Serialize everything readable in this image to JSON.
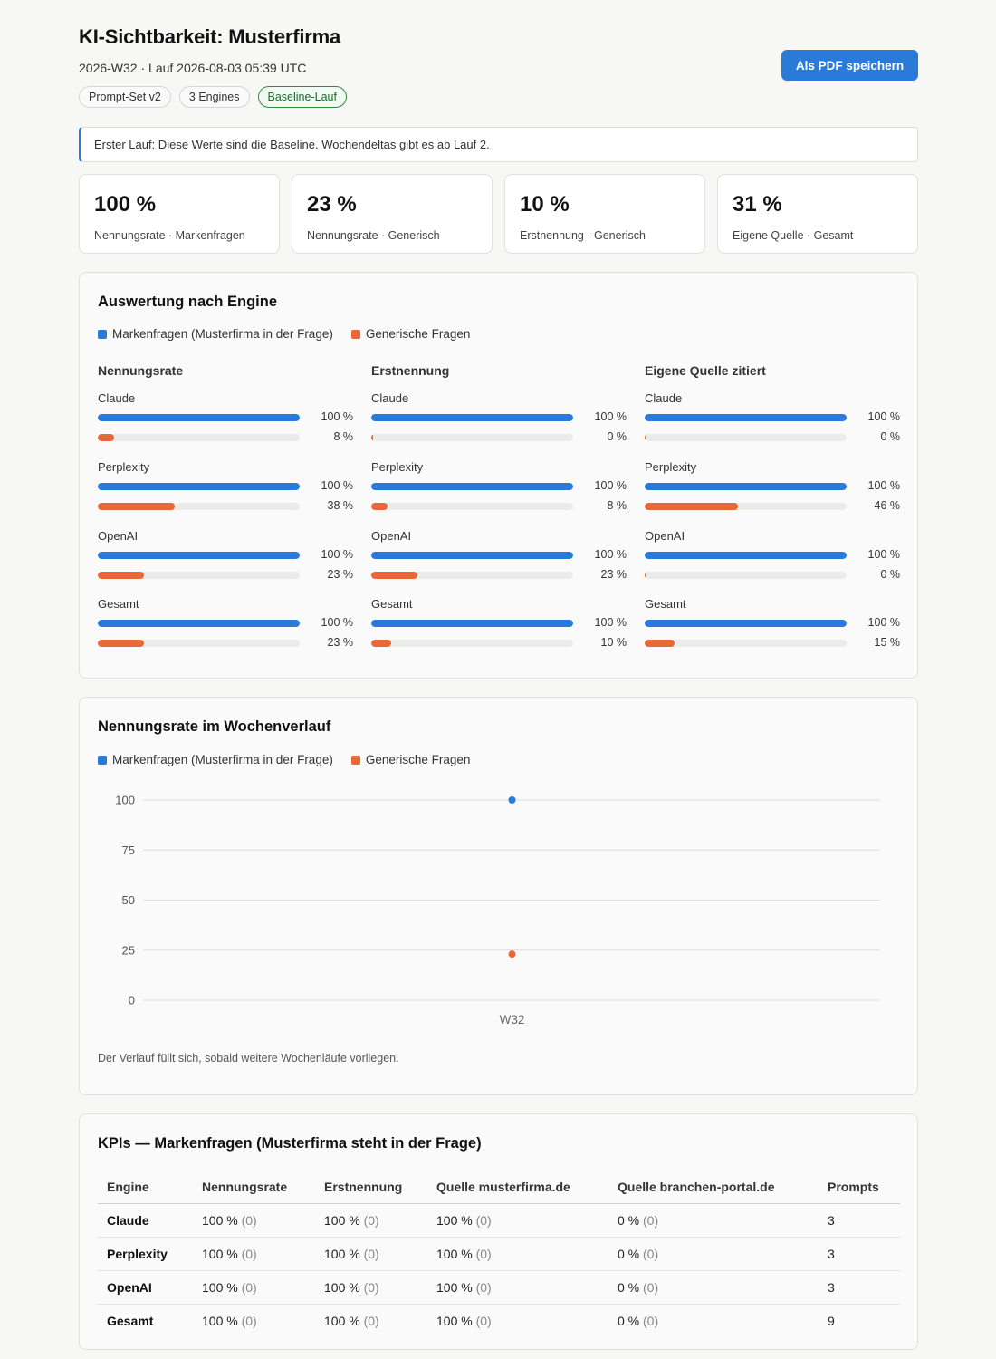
{
  "header": {
    "title": "KI-Sichtbarkeit: Musterfirma",
    "subtitle": "2026-W32 · Lauf 2026-08-03 05:39 UTC",
    "chips": [
      "Prompt-Set v2",
      "3 Engines",
      "Baseline-Lauf"
    ],
    "pdf_button": "Als PDF speichern"
  },
  "notice": "Erster Lauf: Diese Werte sind die Baseline. Wochendeltas gibt es ab Lauf 2.",
  "kpis": [
    {
      "value": "100 %",
      "label": "Nennungsrate · Markenfragen"
    },
    {
      "value": "23 %",
      "label": "Nennungsrate · Generisch"
    },
    {
      "value": "10 %",
      "label": "Erstnennung · Generisch"
    },
    {
      "value": "31 %",
      "label": "Eigene Quelle · Gesamt"
    }
  ],
  "colors": {
    "brand": "#2a7ad9",
    "generic": "#e8683a"
  },
  "engines_card": {
    "title": "Auswertung nach Engine",
    "legend": {
      "brand": "Markenfragen (Musterfirma in der Frage)",
      "generic": "Generische Fragen"
    },
    "metrics": [
      {
        "title": "Nennungsrate",
        "engines": [
          {
            "name": "Claude",
            "brand": 100,
            "generic": 8,
            "brand_label": "100 %",
            "generic_label": "8 %"
          },
          {
            "name": "Perplexity",
            "brand": 100,
            "generic": 38,
            "brand_label": "100 %",
            "generic_label": "38 %"
          },
          {
            "name": "OpenAI",
            "brand": 100,
            "generic": 23,
            "brand_label": "100 %",
            "generic_label": "23 %"
          },
          {
            "name": "Gesamt",
            "brand": 100,
            "generic": 23,
            "brand_label": "100 %",
            "generic_label": "23 %"
          }
        ]
      },
      {
        "title": "Erstnennung",
        "engines": [
          {
            "name": "Claude",
            "brand": 100,
            "generic": 0,
            "brand_label": "100 %",
            "generic_label": "0 %"
          },
          {
            "name": "Perplexity",
            "brand": 100,
            "generic": 8,
            "brand_label": "100 %",
            "generic_label": "8 %"
          },
          {
            "name": "OpenAI",
            "brand": 100,
            "generic": 23,
            "brand_label": "100 %",
            "generic_label": "23 %"
          },
          {
            "name": "Gesamt",
            "brand": 100,
            "generic": 10,
            "brand_label": "100 %",
            "generic_label": "10 %"
          }
        ]
      },
      {
        "title": "Eigene Quelle zitiert",
        "engines": [
          {
            "name": "Claude",
            "brand": 100,
            "generic": 0,
            "brand_label": "100 %",
            "generic_label": "0 %"
          },
          {
            "name": "Perplexity",
            "brand": 100,
            "generic": 46,
            "brand_label": "100 %",
            "generic_label": "46 %"
          },
          {
            "name": "OpenAI",
            "brand": 100,
            "generic": 0,
            "brand_label": "100 %",
            "generic_label": "0 %"
          },
          {
            "name": "Gesamt",
            "brand": 100,
            "generic": 15,
            "brand_label": "100 %",
            "generic_label": "15 %"
          }
        ]
      }
    ]
  },
  "trend_card": {
    "title": "Nennungsrate im Wochenverlauf",
    "legend": {
      "brand": "Markenfragen (Musterfirma in der Frage)",
      "generic": "Generische Fragen"
    },
    "note": "Der Verlauf füllt sich, sobald weitere Wochenläufe vorliegen."
  },
  "chart_data": {
    "type": "line",
    "x": [
      "W32"
    ],
    "series": [
      {
        "name": "Markenfragen (Musterfirma in der Frage)",
        "values": [
          100
        ]
      },
      {
        "name": "Generische Fragen",
        "values": [
          23
        ]
      }
    ],
    "yticks": [
      100,
      75,
      50,
      25,
      0
    ],
    "ylim": [
      0,
      100
    ],
    "grid": true,
    "legend": "top-left"
  },
  "kpi_table": {
    "title": "KPIs — Markenfragen (Musterfirma steht in der Frage)",
    "columns": [
      "Engine",
      "Nennungsrate",
      "Erstnennung",
      "Quelle musterfirma.de",
      "Quelle branchen-portal.de",
      "Prompts"
    ],
    "rows": [
      {
        "engine": "Claude",
        "cells": [
          [
            "100 %",
            "(0)"
          ],
          [
            "100 %",
            "(0)"
          ],
          [
            "100 %",
            "(0)"
          ],
          [
            "0 %",
            "(0)"
          ]
        ],
        "prompts": "3"
      },
      {
        "engine": "Perplexity",
        "cells": [
          [
            "100 %",
            "(0)"
          ],
          [
            "100 %",
            "(0)"
          ],
          [
            "100 %",
            "(0)"
          ],
          [
            "0 %",
            "(0)"
          ]
        ],
        "prompts": "3"
      },
      {
        "engine": "OpenAI",
        "cells": [
          [
            "100 %",
            "(0)"
          ],
          [
            "100 %",
            "(0)"
          ],
          [
            "100 %",
            "(0)"
          ],
          [
            "0 %",
            "(0)"
          ]
        ],
        "prompts": "3"
      },
      {
        "engine": "Gesamt",
        "cells": [
          [
            "100 %",
            "(0)"
          ],
          [
            "100 %",
            "(0)"
          ],
          [
            "100 %",
            "(0)"
          ],
          [
            "0 %",
            "(0)"
          ]
        ],
        "prompts": "9"
      }
    ]
  }
}
